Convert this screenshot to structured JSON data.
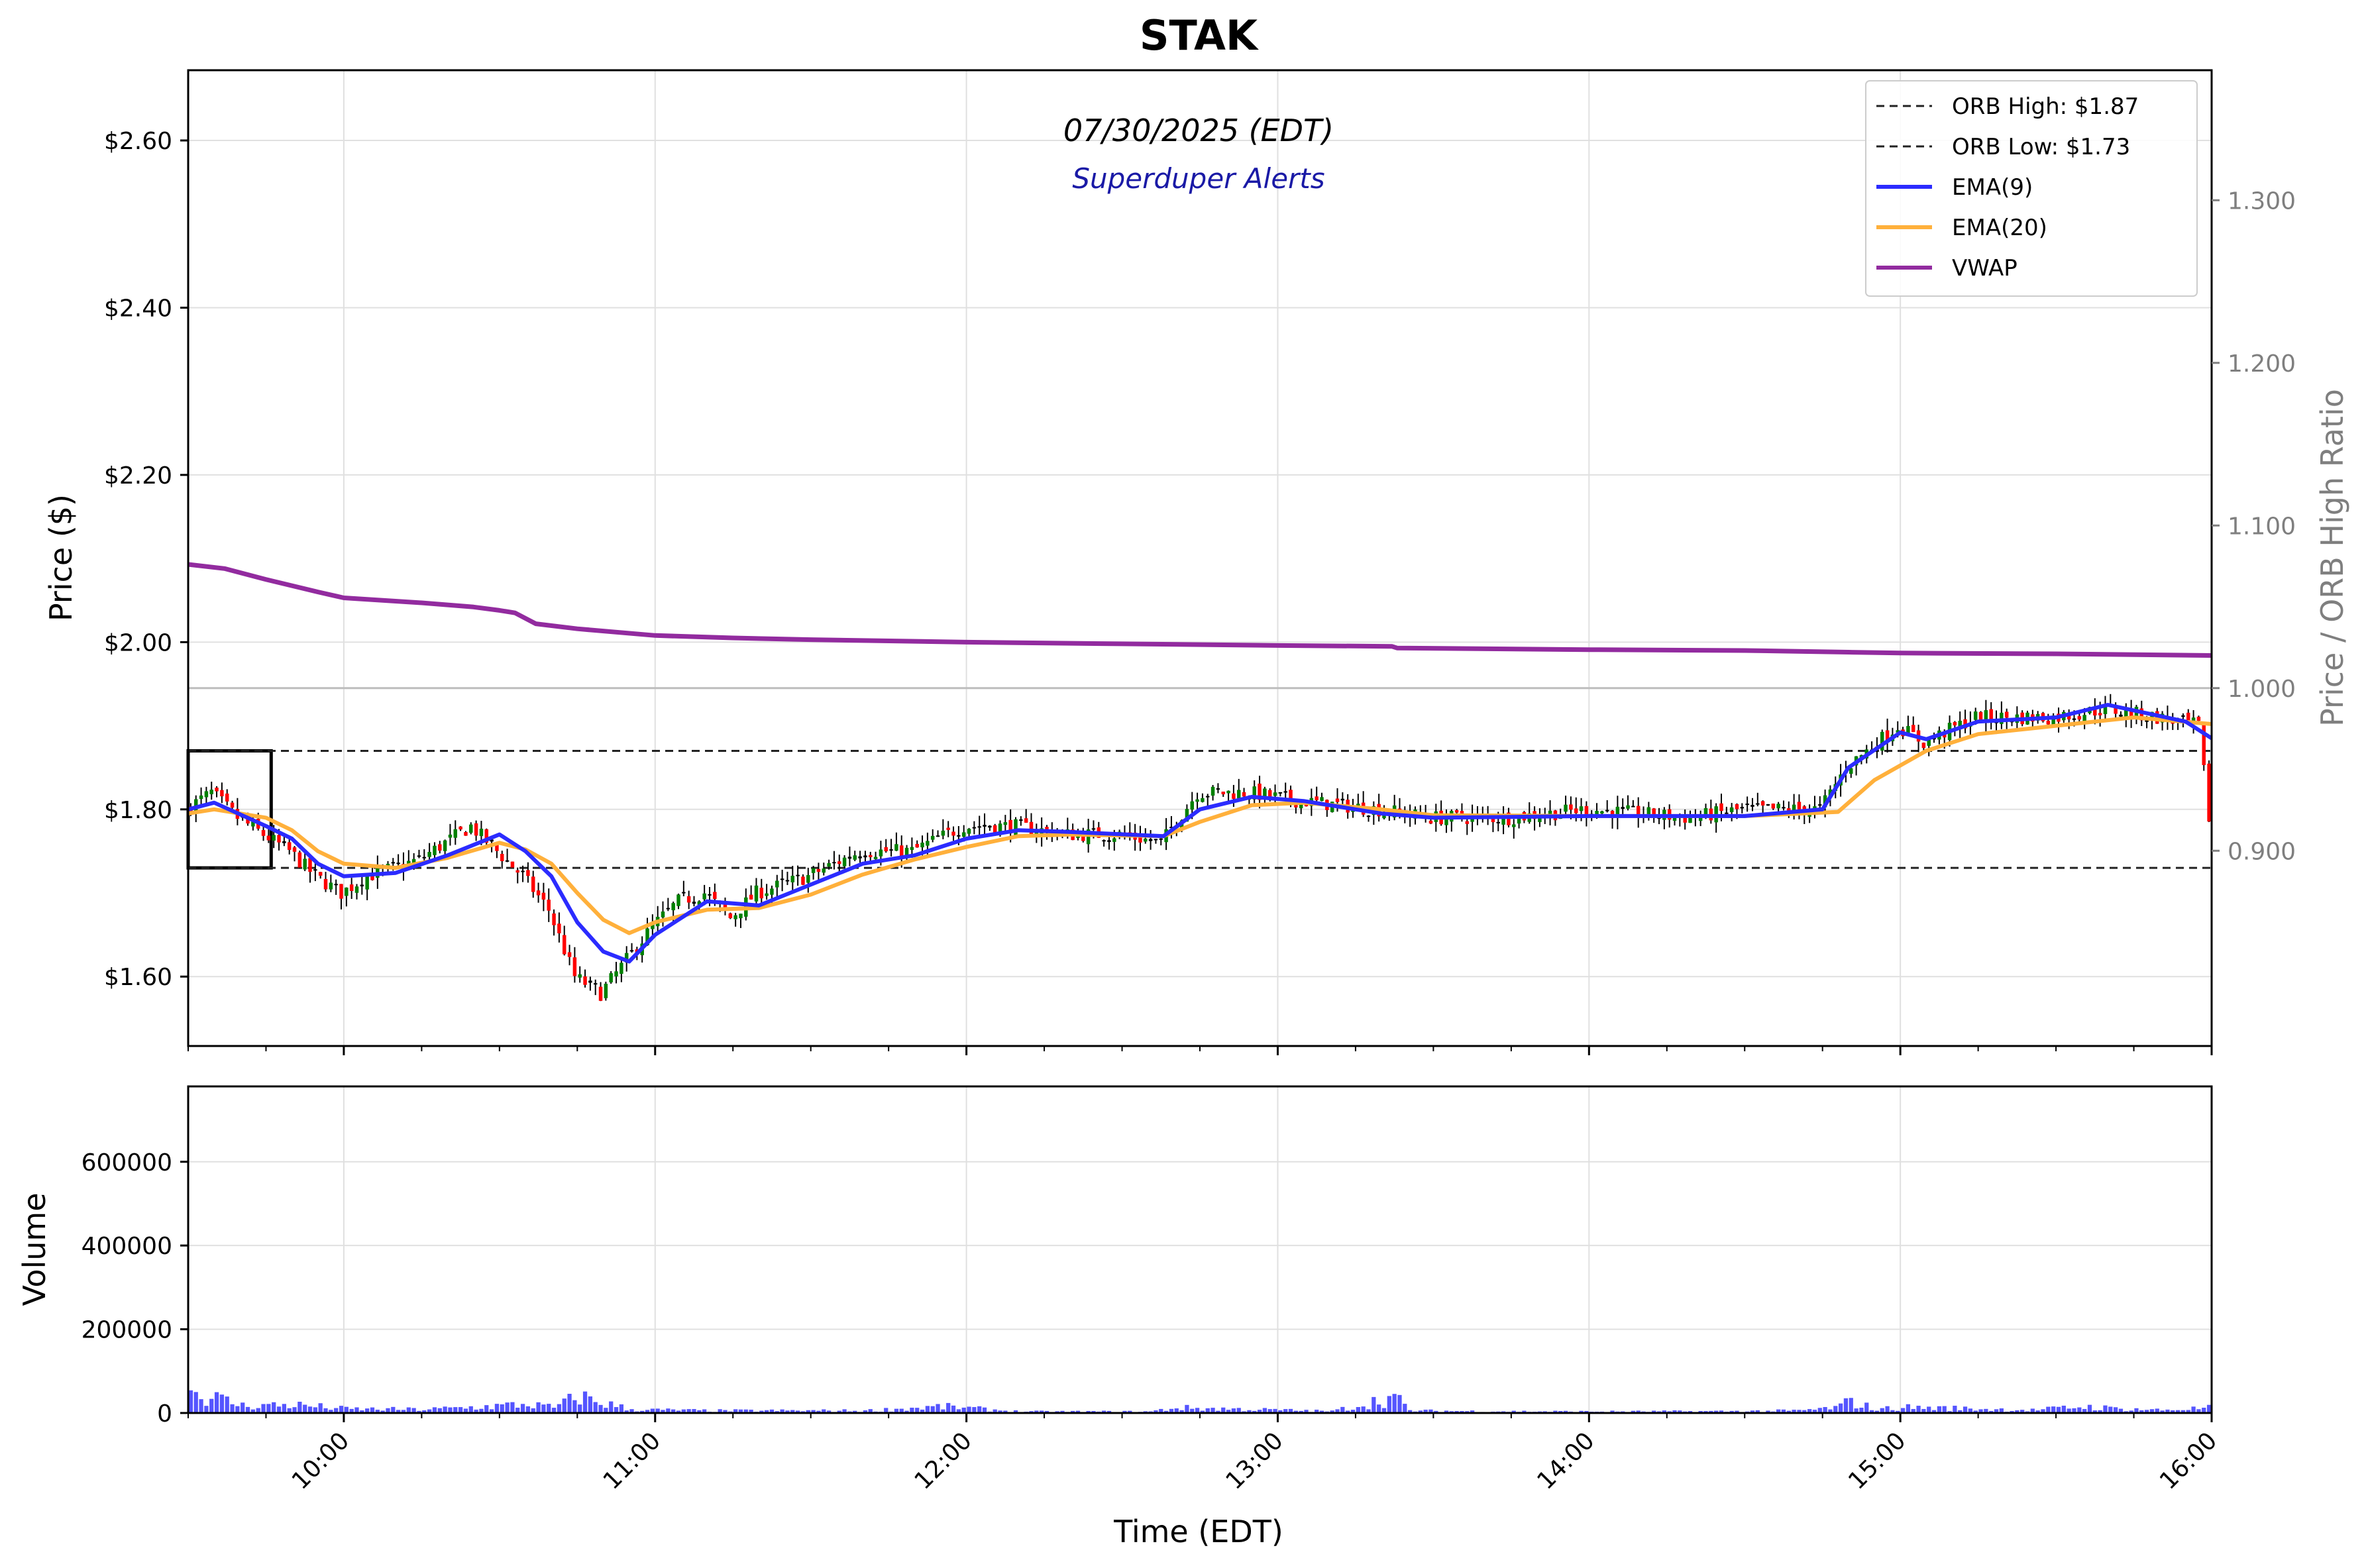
{
  "chart_data": {
    "type": "candlestick",
    "title": "STAK",
    "subtitle": "07/30/2025 (EDT)",
    "watermark": "Superduper Alerts",
    "xlabel": "Time (EDT)",
    "ylabel": "Price ($)",
    "y2label": "Price / ORB High Ratio",
    "volume_ylabel": "Volume",
    "x_range": [
      "09:30",
      "16:00"
    ],
    "x_ticks": [
      "10:00",
      "11:00",
      "12:00",
      "13:00",
      "14:00",
      "15:00",
      "16:00"
    ],
    "price_range": [
      1.517,
      2.684
    ],
    "price_ticks": [
      "$1.60",
      "$1.80",
      "$2.00",
      "$2.20",
      "$2.40",
      "$2.60"
    ],
    "ratio_ticks": [
      "0.900",
      "1.000",
      "1.100",
      "1.200",
      "1.300"
    ],
    "volume_range": [
      0,
      780000
    ],
    "volume_ticks": [
      "0",
      "200000",
      "400000",
      "600000"
    ],
    "orb_high": 1.87,
    "orb_low": 1.73,
    "orb_window": [
      "09:30",
      "09:46"
    ],
    "ratio_reference_price": 1.945,
    "grid": true,
    "legend_position": "top-right",
    "legend": [
      "ORB High: $1.87",
      "ORB Low: $1.73",
      "EMA(9)",
      "EMA(20)",
      "VWAP"
    ],
    "colors": {
      "up": "#008000",
      "down": "#ff0000",
      "doji": "#000000",
      "ema9": "#2b2bff",
      "ema20": "#ffb03b",
      "vwap": "#922b9f",
      "volume": "#5555ff",
      "watermark": "#1a1aa6"
    },
    "price_path": [
      [
        "09:30",
        1.8
      ],
      [
        "09:35",
        1.82
      ],
      [
        "09:40",
        1.79
      ],
      [
        "09:45",
        1.77
      ],
      [
        "09:50",
        1.75
      ],
      [
        "09:55",
        1.72
      ],
      [
        "10:00",
        1.7
      ],
      [
        "10:05",
        1.72
      ],
      [
        "10:10",
        1.73
      ],
      [
        "10:15",
        1.74
      ],
      [
        "10:20",
        1.76
      ],
      [
        "10:25",
        1.78
      ],
      [
        "10:30",
        1.75
      ],
      [
        "10:35",
        1.72
      ],
      [
        "10:40",
        1.68
      ],
      [
        "10:45",
        1.6
      ],
      [
        "10:50",
        1.58
      ],
      [
        "10:55",
        1.62
      ],
      [
        "11:00",
        1.66
      ],
      [
        "11:05",
        1.69
      ],
      [
        "11:10",
        1.7
      ],
      [
        "11:15",
        1.67
      ],
      [
        "11:20",
        1.7
      ],
      [
        "11:30",
        1.72
      ],
      [
        "11:40",
        1.75
      ],
      [
        "11:50",
        1.75
      ],
      [
        "12:00",
        1.78
      ],
      [
        "12:10",
        1.78
      ],
      [
        "12:20",
        1.77
      ],
      [
        "12:30",
        1.77
      ],
      [
        "12:38",
        1.76
      ],
      [
        "12:45",
        1.82
      ],
      [
        "12:55",
        1.82
      ],
      [
        "13:05",
        1.81
      ],
      [
        "13:20",
        1.8
      ],
      [
        "13:30",
        1.79
      ],
      [
        "13:45",
        1.79
      ],
      [
        "14:00",
        1.8
      ],
      [
        "14:20",
        1.79
      ],
      [
        "14:30",
        1.8
      ],
      [
        "14:45",
        1.8
      ],
      [
        "14:50",
        1.85
      ],
      [
        "15:00",
        1.9
      ],
      [
        "15:05",
        1.88
      ],
      [
        "15:15",
        1.91
      ],
      [
        "15:30",
        1.91
      ],
      [
        "15:40",
        1.92
      ],
      [
        "15:50",
        1.91
      ],
      [
        "15:58",
        1.9
      ],
      [
        "16:00",
        1.79
      ]
    ],
    "ema9": [
      [
        "09:30",
        1.8
      ],
      [
        "09:35",
        1.808
      ],
      [
        "09:45",
        1.78
      ],
      [
        "09:50",
        1.765
      ],
      [
        "09:55",
        1.735
      ],
      [
        "10:00",
        1.72
      ],
      [
        "10:10",
        1.724
      ],
      [
        "10:20",
        1.745
      ],
      [
        "10:30",
        1.77
      ],
      [
        "10:35",
        1.75
      ],
      [
        "10:40",
        1.72
      ],
      [
        "10:45",
        1.665
      ],
      [
        "10:50",
        1.63
      ],
      [
        "10:55",
        1.618
      ],
      [
        "11:00",
        1.65
      ],
      [
        "11:05",
        1.67
      ],
      [
        "11:10",
        1.69
      ],
      [
        "11:20",
        1.685
      ],
      [
        "11:30",
        1.71
      ],
      [
        "11:40",
        1.735
      ],
      [
        "11:50",
        1.745
      ],
      [
        "12:00",
        1.765
      ],
      [
        "12:10",
        1.775
      ],
      [
        "12:20",
        1.773
      ],
      [
        "12:38",
        1.768
      ],
      [
        "12:45",
        1.8
      ],
      [
        "12:55",
        1.815
      ],
      [
        "13:05",
        1.81
      ],
      [
        "13:20",
        1.795
      ],
      [
        "13:30",
        1.79
      ],
      [
        "14:00",
        1.792
      ],
      [
        "14:30",
        1.792
      ],
      [
        "14:45",
        1.8
      ],
      [
        "14:50",
        1.85
      ],
      [
        "15:00",
        1.892
      ],
      [
        "15:05",
        1.884
      ],
      [
        "15:15",
        1.905
      ],
      [
        "15:30",
        1.91
      ],
      [
        "15:40",
        1.925
      ],
      [
        "15:55",
        1.905
      ],
      [
        "16:00",
        1.885
      ]
    ],
    "ema20": [
      [
        "09:30",
        1.795
      ],
      [
        "09:35",
        1.8
      ],
      [
        "09:45",
        1.79
      ],
      [
        "09:50",
        1.775
      ],
      [
        "09:55",
        1.75
      ],
      [
        "10:00",
        1.735
      ],
      [
        "10:10",
        1.73
      ],
      [
        "10:20",
        1.742
      ],
      [
        "10:30",
        1.76
      ],
      [
        "10:35",
        1.752
      ],
      [
        "10:40",
        1.735
      ],
      [
        "10:45",
        1.7
      ],
      [
        "10:50",
        1.668
      ],
      [
        "10:55",
        1.652
      ],
      [
        "11:00",
        1.665
      ],
      [
        "11:10",
        1.68
      ],
      [
        "11:20",
        1.682
      ],
      [
        "11:30",
        1.698
      ],
      [
        "11:40",
        1.722
      ],
      [
        "11:50",
        1.74
      ],
      [
        "12:00",
        1.755
      ],
      [
        "12:10",
        1.768
      ],
      [
        "12:20",
        1.77
      ],
      [
        "12:38",
        1.768
      ],
      [
        "12:45",
        1.785
      ],
      [
        "12:55",
        1.805
      ],
      [
        "13:05",
        1.808
      ],
      [
        "13:20",
        1.8
      ],
      [
        "13:30",
        1.793
      ],
      [
        "14:00",
        1.792
      ],
      [
        "14:30",
        1.792
      ],
      [
        "14:48",
        1.797
      ],
      [
        "14:55",
        1.835
      ],
      [
        "15:05",
        1.87
      ],
      [
        "15:15",
        1.89
      ],
      [
        "15:30",
        1.9
      ],
      [
        "15:45",
        1.91
      ],
      [
        "16:00",
        1.902
      ]
    ],
    "vwap": [
      [
        "09:30",
        2.093
      ],
      [
        "09:37",
        2.088
      ],
      [
        "09:45",
        2.075
      ],
      [
        "09:55",
        2.06
      ],
      [
        "10:00",
        2.053
      ],
      [
        "10:15",
        2.047
      ],
      [
        "10:25",
        2.042
      ],
      [
        "10:30",
        2.038
      ],
      [
        "10:33",
        2.035
      ],
      [
        "10:37",
        2.022
      ],
      [
        "10:45",
        2.016
      ],
      [
        "11:00",
        2.008
      ],
      [
        "11:15",
        2.005
      ],
      [
        "11:30",
        2.003
      ],
      [
        "12:00",
        2.0
      ],
      [
        "12:30",
        1.998
      ],
      [
        "13:00",
        1.996
      ],
      [
        "13:22",
        1.995
      ],
      [
        "13:23",
        1.993
      ],
      [
        "14:00",
        1.991
      ],
      [
        "14:30",
        1.99
      ],
      [
        "14:50",
        1.988
      ],
      [
        "15:00",
        1.987
      ],
      [
        "15:30",
        1.986
      ],
      [
        "16:00",
        1.984
      ]
    ],
    "volume_profile": [
      [
        "09:30",
        75000
      ],
      [
        "09:40",
        25000
      ],
      [
        "09:50",
        28000
      ],
      [
        "10:00",
        14000
      ],
      [
        "10:15",
        12000
      ],
      [
        "10:25",
        20000
      ],
      [
        "10:35",
        30000
      ],
      [
        "10:40",
        18000
      ],
      [
        "10:45",
        58000
      ],
      [
        "10:48",
        40000
      ],
      [
        "10:55",
        12000
      ],
      [
        "11:10",
        8000
      ],
      [
        "11:40",
        8000
      ],
      [
        "11:55",
        22000
      ],
      [
        "12:10",
        5000
      ],
      [
        "12:35",
        5000
      ],
      [
        "12:40",
        18000
      ],
      [
        "13:10",
        6000
      ],
      [
        "13:22",
        55000
      ],
      [
        "13:25",
        8000
      ],
      [
        "13:40",
        6000
      ],
      [
        "14:00",
        5000
      ],
      [
        "14:25",
        6000
      ],
      [
        "14:40",
        8000
      ],
      [
        "14:47",
        18000
      ],
      [
        "14:50",
        40000
      ],
      [
        "14:55",
        12000
      ],
      [
        "15:00",
        20000
      ],
      [
        "15:25",
        10000
      ],
      [
        "15:35",
        22000
      ],
      [
        "15:40",
        16000
      ],
      [
        "15:50",
        10000
      ],
      [
        "16:00",
        18000
      ]
    ]
  }
}
